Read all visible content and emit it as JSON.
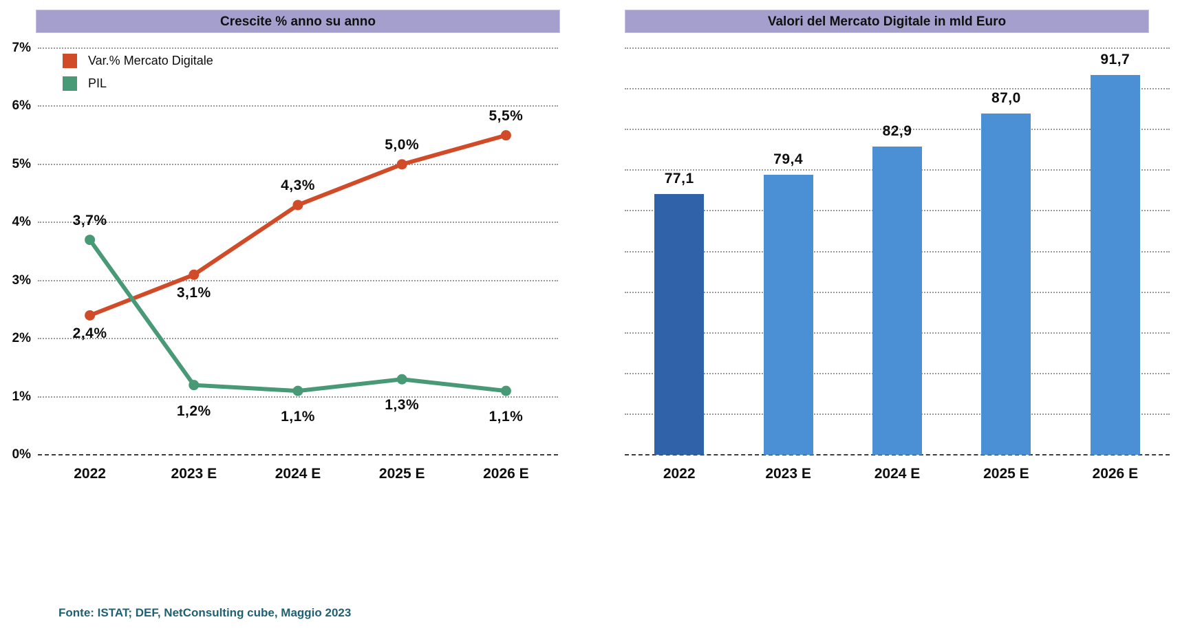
{
  "page": {
    "background": "#ffffff"
  },
  "source_note": "Fonte: ISTAT; DEF, NetConsulting cube, Maggio 2023",
  "colors": {
    "header_bg": "#a59fce",
    "grid": "#9a9a9a",
    "baseline": "#3d3d3d",
    "text": "#0d0d0d",
    "source_text": "#1e6173",
    "line_mercato": "#d14b28",
    "line_pil": "#489975",
    "bar_2022": "#2f62a8",
    "bar_forecast": "#4b90d5"
  },
  "chart_data": [
    {
      "type": "line",
      "title": "Crescite % anno su anno",
      "categories": [
        "2022",
        "2023 E",
        "2024 E",
        "2025 E",
        "2026 E"
      ],
      "series": [
        {
          "name": "Var.% Mercato Digitale",
          "color": "#d14b28",
          "values": [
            2.4,
            3.1,
            4.3,
            5.0,
            5.5
          ],
          "labels": [
            "2,4%",
            "3,1%",
            "4,3%",
            "5,0%",
            "5,5%"
          ],
          "label_positions": [
            "below",
            "below",
            "above",
            "above",
            "above"
          ]
        },
        {
          "name": "PIL",
          "color": "#489975",
          "values": [
            3.7,
            1.2,
            1.1,
            1.3,
            1.1
          ],
          "labels": [
            "3,7%",
            "1,2%",
            "1,1%",
            "1,3%",
            "1,1%"
          ],
          "label_positions": [
            "above",
            "below",
            "below",
            "below",
            "below"
          ]
        }
      ],
      "ylim": [
        0,
        7
      ],
      "ytick_labels": [
        "0%",
        "1%",
        "2%",
        "3%",
        "4%",
        "5%",
        "6%",
        "7%"
      ],
      "grid": "horizontal dotted, dashed zero baseline",
      "legend_position": "top-left"
    },
    {
      "type": "bar",
      "title": "Valori del Mercato Digitale in mld Euro",
      "categories": [
        "2022",
        "2023 E",
        "2024 E",
        "2025 E",
        "2026 E"
      ],
      "values": [
        77.1,
        79.4,
        82.9,
        87.0,
        91.7
      ],
      "labels": [
        "77,1",
        "79,4",
        "82,9",
        "87,0",
        "91,7"
      ],
      "bar_colors": [
        "#2f62a8",
        "#4b90d5",
        "#4b90d5",
        "#4b90d5",
        "#4b90d5"
      ],
      "ylim": [
        45,
        95
      ],
      "gridline_step": 5,
      "yaxis_labels_visible": false,
      "grid": "horizontal dotted, dashed baseline"
    }
  ]
}
